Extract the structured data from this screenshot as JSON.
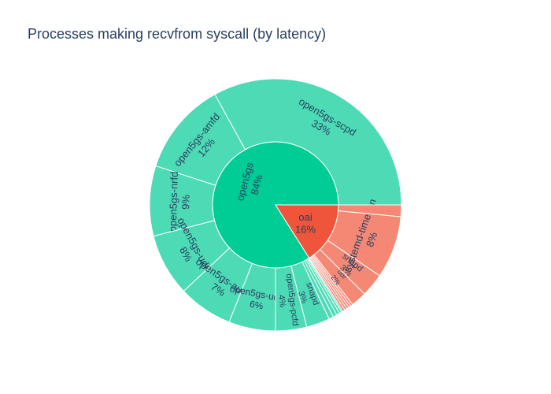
{
  "chart_data": {
    "type": "sunburst",
    "title": "Processes making recvfrom syscall (by latency)",
    "colors": {
      "open5gs_inner": "#00cc96",
      "open5gs_outer": "#4ddbb5",
      "oai_inner": "#ef553b",
      "oai_outer": "#f48875"
    },
    "groups": [
      {
        "name": "open5gs",
        "percent_label": "84%",
        "value": 84,
        "children": [
          {
            "name": "open5gs-scpd",
            "percent_label": "33%",
            "value": 33
          },
          {
            "name": "open5gs-amfd",
            "percent_label": "12%",
            "value": 12
          },
          {
            "name": "open5gs-nrfd",
            "percent_label": "9%",
            "value": 9
          },
          {
            "name": "open5gs-udmd",
            "percent_label": "8%",
            "value": 8
          },
          {
            "name": "open5gs-ausfd",
            "percent_label": "7%",
            "value": 7
          },
          {
            "name": "open5gs-udrd",
            "percent_label": "6%",
            "value": 6
          },
          {
            "name": "open5gs-pcfd",
            "percent_label": "4%",
            "value": 4
          },
          {
            "name": "snapd",
            "percent_label": "3%",
            "value": 3
          },
          {
            "name": "",
            "percent_label": "",
            "value": 0.6
          },
          {
            "name": "",
            "percent_label": "",
            "value": 0.5
          },
          {
            "name": "",
            "percent_label": "",
            "value": 0.4
          },
          {
            "name": "",
            "percent_label": "",
            "value": 0.3
          },
          {
            "name": "",
            "percent_label": "",
            "value": 0.2
          }
        ]
      },
      {
        "name": "oai",
        "percent_label": "16%",
        "value": 16,
        "children": [
          {
            "name": "",
            "percent_label": "",
            "value": 0.3
          },
          {
            "name": "",
            "percent_label": "",
            "value": 0.3
          },
          {
            "name": "",
            "percent_label": "",
            "value": 0.3
          },
          {
            "name": "",
            "percent_label": "",
            "value": 0.3
          },
          {
            "name": "",
            "percent_label": "",
            "value": 0.3
          },
          {
            "name": "udr",
            "percent_label": "2%",
            "value": 2
          },
          {
            "name": "snapd",
            "percent_label": "3%",
            "value": 3
          },
          {
            "name": "systemd-timesyn",
            "percent_label": "8%",
            "value": 8
          },
          {
            "name": "",
            "percent_label": "",
            "value": 1.5
          }
        ]
      }
    ]
  }
}
